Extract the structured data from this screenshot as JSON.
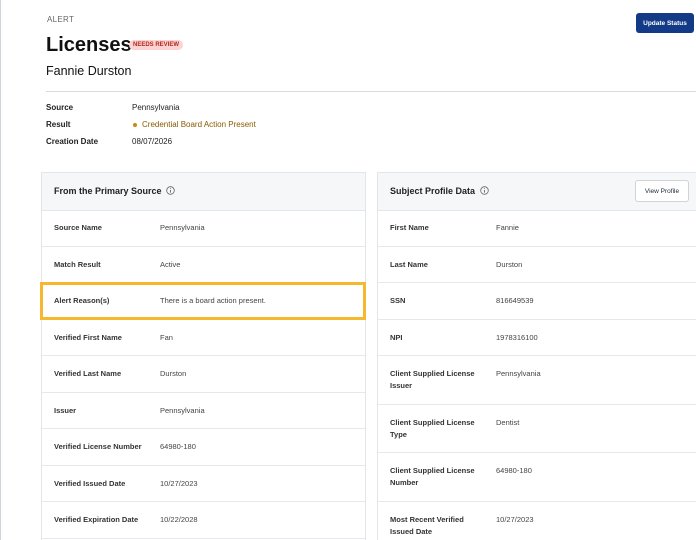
{
  "header": {
    "eyebrow": "ALERT",
    "title": "Licenses",
    "badge": "NEEDS REVIEW",
    "subject": "Fannie Durston",
    "action": "Update Status"
  },
  "summary": [
    {
      "label": "Source",
      "value": "Pennsylvania"
    },
    {
      "label": "Result",
      "value": "Credential Board Action Present"
    },
    {
      "label": "Creation Date",
      "value": "08/07/2026"
    }
  ],
  "primary_source": {
    "title": "From the Primary Source",
    "rows": [
      {
        "label": "Source Name",
        "value": "Pennsylvania"
      },
      {
        "label": "Match Result",
        "value": "Active"
      },
      {
        "label": "Alert Reason(s)",
        "value": "There is a board action present."
      },
      {
        "label": "Verified First Name",
        "value": "Fan"
      },
      {
        "label": "Verified Last Name",
        "value": "Durston"
      },
      {
        "label": "Issuer",
        "value": "Pennsylvania"
      },
      {
        "label": "Verified License Number",
        "value": "64980-180"
      },
      {
        "label": "Verified Issued Date",
        "value": "10/27/2023"
      },
      {
        "label": "Verified Expiration Date",
        "value": "10/22/2028"
      }
    ]
  },
  "subject_profile": {
    "title": "Subject Profile Data",
    "action": "View Profile",
    "rows": [
      {
        "label": "First Name",
        "value": "Fannie"
      },
      {
        "label": "Last Name",
        "value": "Durston"
      },
      {
        "label": "SSN",
        "value": "816649539"
      },
      {
        "label": "NPI",
        "value": "1978316100"
      },
      {
        "label": "Client Supplied License Issuer",
        "value": "Pennsylvania"
      },
      {
        "label": "Client Supplied License Type",
        "value": "Dentist"
      },
      {
        "label": "Client Supplied License Number",
        "value": "64980-180"
      },
      {
        "label": "Most Recent Verified Issued Date",
        "value": "10/27/2023"
      }
    ]
  }
}
